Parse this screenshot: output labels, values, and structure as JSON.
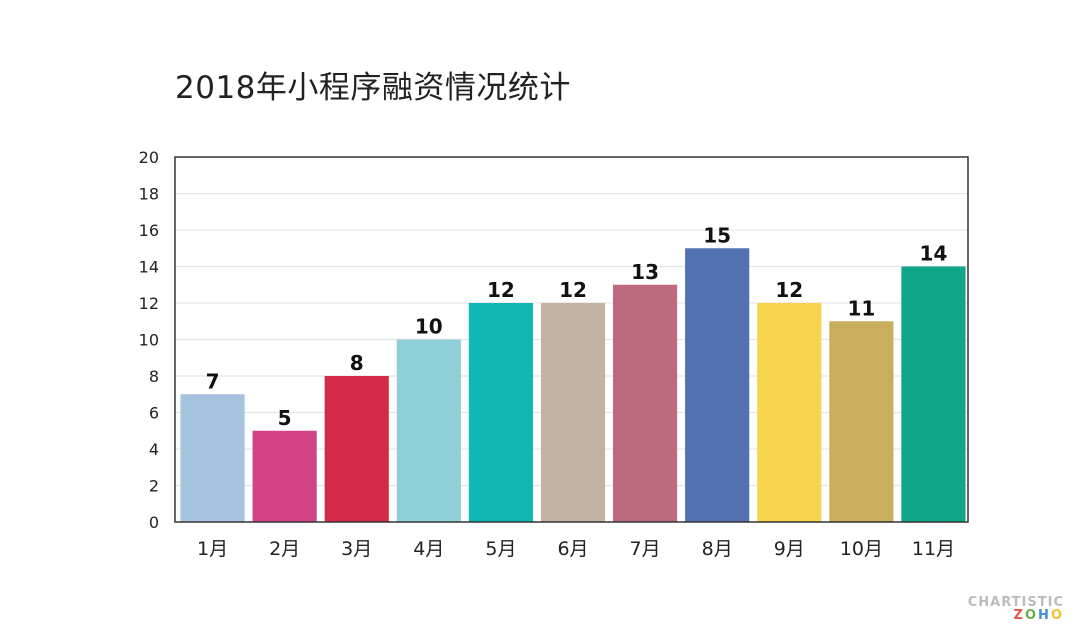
{
  "chart_data": {
    "type": "bar",
    "title": "2018年小程序融资情况统计",
    "xlabel": "",
    "ylabel": "",
    "categories": [
      "1月",
      "2月",
      "3月",
      "4月",
      "5月",
      "6月",
      "7月",
      "8月",
      "9月",
      "10月",
      "11月"
    ],
    "values": [
      7,
      5,
      8,
      10,
      12,
      12,
      13,
      15,
      12,
      11,
      14
    ],
    "colors": [
      "#a5c2df",
      "#d44287",
      "#d42a48",
      "#8ecfd8",
      "#11b8b3",
      "#c2b4a1",
      "#bd6a7e",
      "#5271b1",
      "#f8d44e",
      "#c9af5d",
      "#0fa58b"
    ],
    "ylim": [
      0,
      20
    ],
    "yticks": [
      0,
      2,
      4,
      6,
      8,
      10,
      12,
      14,
      16,
      18,
      20
    ],
    "grid": true,
    "legend": "none"
  },
  "watermark": {
    "line1": "CHARTISTIC",
    "line2": [
      "Z",
      "O",
      "H",
      "O"
    ]
  }
}
